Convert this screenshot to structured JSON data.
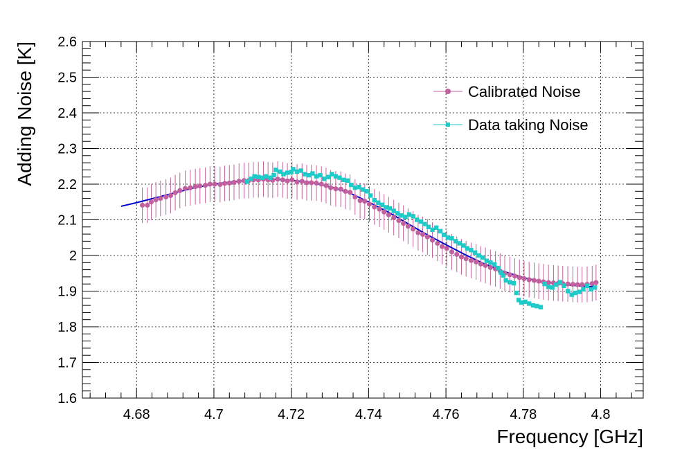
{
  "colors": {
    "calibrated": "#c0609e",
    "data_taking": "#1ecbc8",
    "fit": "#0000cc",
    "frame": "#000000",
    "grid": "#000000"
  },
  "chart_data": {
    "type": "scatter",
    "title": "",
    "xlabel": "Frequency [GHz]",
    "ylabel": "Adding Noise [K]",
    "xlim": [
      4.666,
      4.811
    ],
    "ylim": [
      1.6,
      2.6
    ],
    "grid": true,
    "legend_position": "top-right",
    "x_ticks": [
      "4.68",
      "4.7",
      "4.72",
      "4.74",
      "4.76",
      "4.78",
      "4.8"
    ],
    "y_ticks": [
      "1.6",
      "1.7",
      "1.8",
      "1.9",
      "2",
      "2.1",
      "2.2",
      "2.3",
      "2.4",
      "2.5",
      "2.6"
    ],
    "series": [
      {
        "name": "Calibrated Noise",
        "marker": "circle",
        "error_bar": 0.05,
        "points": [
          [
            4.6815,
            2.141
          ],
          [
            4.6828,
            2.141
          ],
          [
            4.6838,
            2.15
          ],
          [
            4.685,
            2.156
          ],
          [
            4.6862,
            2.16
          ],
          [
            4.6876,
            2.164
          ],
          [
            4.6888,
            2.168
          ],
          [
            4.69,
            2.176
          ],
          [
            4.6912,
            2.182
          ],
          [
            4.6926,
            2.188
          ],
          [
            4.6939,
            2.19
          ],
          [
            4.6952,
            2.193
          ],
          [
            4.6964,
            2.195
          ],
          [
            4.6978,
            2.197
          ],
          [
            4.699,
            2.2
          ],
          [
            4.7002,
            2.2
          ],
          [
            4.7016,
            2.199
          ],
          [
            4.7028,
            2.202
          ],
          [
            4.704,
            2.203
          ],
          [
            4.7052,
            2.205
          ],
          [
            4.7065,
            2.208
          ],
          [
            4.7078,
            2.21
          ],
          [
            4.709,
            2.21
          ],
          [
            4.7102,
            2.212
          ],
          [
            4.7115,
            2.212
          ],
          [
            4.7128,
            2.214
          ],
          [
            4.714,
            2.212
          ],
          [
            4.7152,
            2.211
          ],
          [
            4.7165,
            2.214
          ],
          [
            4.7178,
            2.212
          ],
          [
            4.719,
            2.209
          ],
          [
            4.7202,
            2.212
          ],
          [
            4.7215,
            2.206
          ],
          [
            4.7228,
            2.208
          ],
          [
            4.724,
            2.204
          ],
          [
            4.7252,
            2.204
          ],
          [
            4.7265,
            2.203
          ],
          [
            4.7278,
            2.2
          ],
          [
            4.729,
            2.196
          ],
          [
            4.7302,
            2.19
          ],
          [
            4.7315,
            2.187
          ],
          [
            4.7328,
            2.186
          ],
          [
            4.734,
            2.18
          ],
          [
            4.7352,
            2.177
          ],
          [
            4.7365,
            2.164
          ],
          [
            4.7378,
            2.154
          ],
          [
            4.739,
            2.152
          ],
          [
            4.7402,
            2.144
          ],
          [
            4.7415,
            2.136
          ],
          [
            4.7428,
            2.13
          ],
          [
            4.744,
            2.122
          ],
          [
            4.7452,
            2.114
          ],
          [
            4.7465,
            2.106
          ],
          [
            4.7478,
            2.098
          ],
          [
            4.749,
            2.09
          ],
          [
            4.7502,
            2.082
          ],
          [
            4.7515,
            2.074
          ],
          [
            4.7528,
            2.064
          ],
          [
            4.754,
            2.059
          ],
          [
            4.7552,
            2.052
          ],
          [
            4.7565,
            2.043
          ],
          [
            4.7578,
            2.034
          ],
          [
            4.759,
            2.025
          ],
          [
            4.7602,
            2.02
          ],
          [
            4.7615,
            2.01
          ],
          [
            4.7628,
            2.003
          ],
          [
            4.764,
            1.996
          ],
          [
            4.7652,
            1.991
          ],
          [
            4.7665,
            1.986
          ],
          [
            4.7678,
            1.982
          ],
          [
            4.769,
            1.976
          ],
          [
            4.7702,
            1.972
          ],
          [
            4.7715,
            1.966
          ],
          [
            4.7728,
            1.962
          ],
          [
            4.774,
            1.956
          ],
          [
            4.7752,
            1.95
          ],
          [
            4.7765,
            1.946
          ],
          [
            4.7778,
            1.942
          ],
          [
            4.779,
            1.938
          ],
          [
            4.7802,
            1.935
          ],
          [
            4.7815,
            1.932
          ],
          [
            4.7828,
            1.93
          ],
          [
            4.784,
            1.928
          ],
          [
            4.7852,
            1.926
          ],
          [
            4.7865,
            1.924
          ],
          [
            4.7878,
            1.923
          ],
          [
            4.789,
            1.922
          ],
          [
            4.7902,
            1.921
          ],
          [
            4.7915,
            1.92
          ],
          [
            4.7928,
            1.919
          ],
          [
            4.794,
            1.918
          ],
          [
            4.7952,
            1.918
          ],
          [
            4.7965,
            1.919
          ],
          [
            4.7978,
            1.921
          ],
          [
            4.7988,
            1.924
          ]
        ]
      },
      {
        "name": "Data taking Noise",
        "marker": "square",
        "points": [
          [
            4.7085,
            2.207
          ],
          [
            4.7095,
            2.215
          ],
          [
            4.7105,
            2.222
          ],
          [
            4.7115,
            2.22
          ],
          [
            4.7125,
            2.218
          ],
          [
            4.7135,
            2.222
          ],
          [
            4.7145,
            2.218
          ],
          [
            4.7155,
            2.225
          ],
          [
            4.716,
            2.24
          ],
          [
            4.717,
            2.235
          ],
          [
            4.718,
            2.228
          ],
          [
            4.719,
            2.232
          ],
          [
            4.72,
            2.234
          ],
          [
            4.7205,
            2.242
          ],
          [
            4.7215,
            2.235
          ],
          [
            4.7225,
            2.238
          ],
          [
            4.7235,
            2.228
          ],
          [
            4.7245,
            2.225
          ],
          [
            4.7255,
            2.23
          ],
          [
            4.7265,
            2.222
          ],
          [
            4.7275,
            2.225
          ],
          [
            4.7285,
            2.215
          ],
          [
            4.7295,
            2.22
          ],
          [
            4.7305,
            2.228
          ],
          [
            4.7315,
            2.222
          ],
          [
            4.7325,
            2.218
          ],
          [
            4.7335,
            2.212
          ],
          [
            4.7345,
            2.21
          ],
          [
            4.7355,
            2.198
          ],
          [
            4.7365,
            2.19
          ],
          [
            4.7375,
            2.192
          ],
          [
            4.7385,
            2.185
          ],
          [
            4.7395,
            2.18
          ],
          [
            4.7405,
            2.168
          ],
          [
            4.7415,
            2.155
          ],
          [
            4.7425,
            2.148
          ],
          [
            4.7435,
            2.142
          ],
          [
            4.7445,
            2.135
          ],
          [
            4.7455,
            2.132
          ],
          [
            4.7465,
            2.125
          ],
          [
            4.7475,
            2.118
          ],
          [
            4.7485,
            2.112
          ],
          [
            4.7495,
            2.108
          ],
          [
            4.7505,
            2.115
          ],
          [
            4.7515,
            2.11
          ],
          [
            4.7525,
            2.1
          ],
          [
            4.7535,
            2.095
          ],
          [
            4.7545,
            2.088
          ],
          [
            4.7555,
            2.08
          ],
          [
            4.7565,
            2.072
          ],
          [
            4.7575,
            2.078
          ],
          [
            4.7585,
            2.068
          ],
          [
            4.7595,
            2.058
          ],
          [
            4.7605,
            2.05
          ],
          [
            4.7615,
            2.048
          ],
          [
            4.7625,
            2.04
          ],
          [
            4.7635,
            2.034
          ],
          [
            4.7645,
            2.028
          ],
          [
            4.7655,
            2.02
          ],
          [
            4.7665,
            2.015
          ],
          [
            4.7675,
            2.008
          ],
          [
            4.7685,
            2.0
          ],
          [
            4.7695,
            1.994
          ],
          [
            4.7705,
            1.985
          ],
          [
            4.7715,
            1.98
          ],
          [
            4.7725,
            1.975
          ],
          [
            4.7735,
            1.965
          ],
          [
            4.7742,
            1.952
          ],
          [
            4.7748,
            1.944
          ],
          [
            4.7755,
            1.93
          ],
          [
            4.7765,
            1.925
          ],
          [
            4.7775,
            1.922
          ],
          [
            4.7782,
            1.895
          ],
          [
            4.7788,
            1.875
          ],
          [
            4.7795,
            1.868
          ],
          [
            4.7805,
            1.87
          ],
          [
            4.7815,
            1.865
          ],
          [
            4.7825,
            1.86
          ],
          [
            4.7835,
            1.858
          ],
          [
            4.7845,
            1.855
          ],
          [
            4.7855,
            1.92
          ],
          [
            4.7865,
            1.912
          ],
          [
            4.7875,
            1.91
          ],
          [
            4.7885,
            1.918
          ],
          [
            4.7895,
            1.925
          ],
          [
            4.7905,
            1.915
          ],
          [
            4.7915,
            1.9
          ],
          [
            4.7925,
            1.89
          ],
          [
            4.7935,
            1.895
          ],
          [
            4.7945,
            1.898
          ],
          [
            4.7955,
            1.905
          ],
          [
            4.7965,
            1.915
          ],
          [
            4.7975,
            1.905
          ],
          [
            4.7985,
            1.91
          ]
        ]
      },
      {
        "name": "",
        "type": "line",
        "points": [
          [
            4.676,
            2.138
          ],
          [
            4.68,
            2.148
          ],
          [
            4.685,
            2.162
          ],
          [
            4.69,
            2.176
          ],
          [
            4.695,
            2.19
          ],
          [
            4.7,
            2.2
          ],
          [
            4.705,
            2.207
          ],
          [
            4.71,
            2.212
          ],
          [
            4.715,
            2.214
          ],
          [
            4.72,
            2.211
          ],
          [
            4.725,
            2.205
          ],
          [
            4.73,
            2.193
          ],
          [
            4.735,
            2.176
          ],
          [
            4.74,
            2.15
          ],
          [
            4.745,
            2.122
          ],
          [
            4.75,
            2.09
          ],
          [
            4.755,
            2.059
          ],
          [
            4.76,
            2.03
          ],
          [
            4.765,
            2.002
          ],
          [
            4.77,
            1.976
          ],
          [
            4.775,
            1.955
          ],
          [
            4.78,
            1.938
          ],
          [
            4.785,
            1.926
          ],
          [
            4.79,
            1.919
          ],
          [
            4.795,
            1.914
          ],
          [
            4.799,
            1.912
          ]
        ]
      }
    ]
  }
}
